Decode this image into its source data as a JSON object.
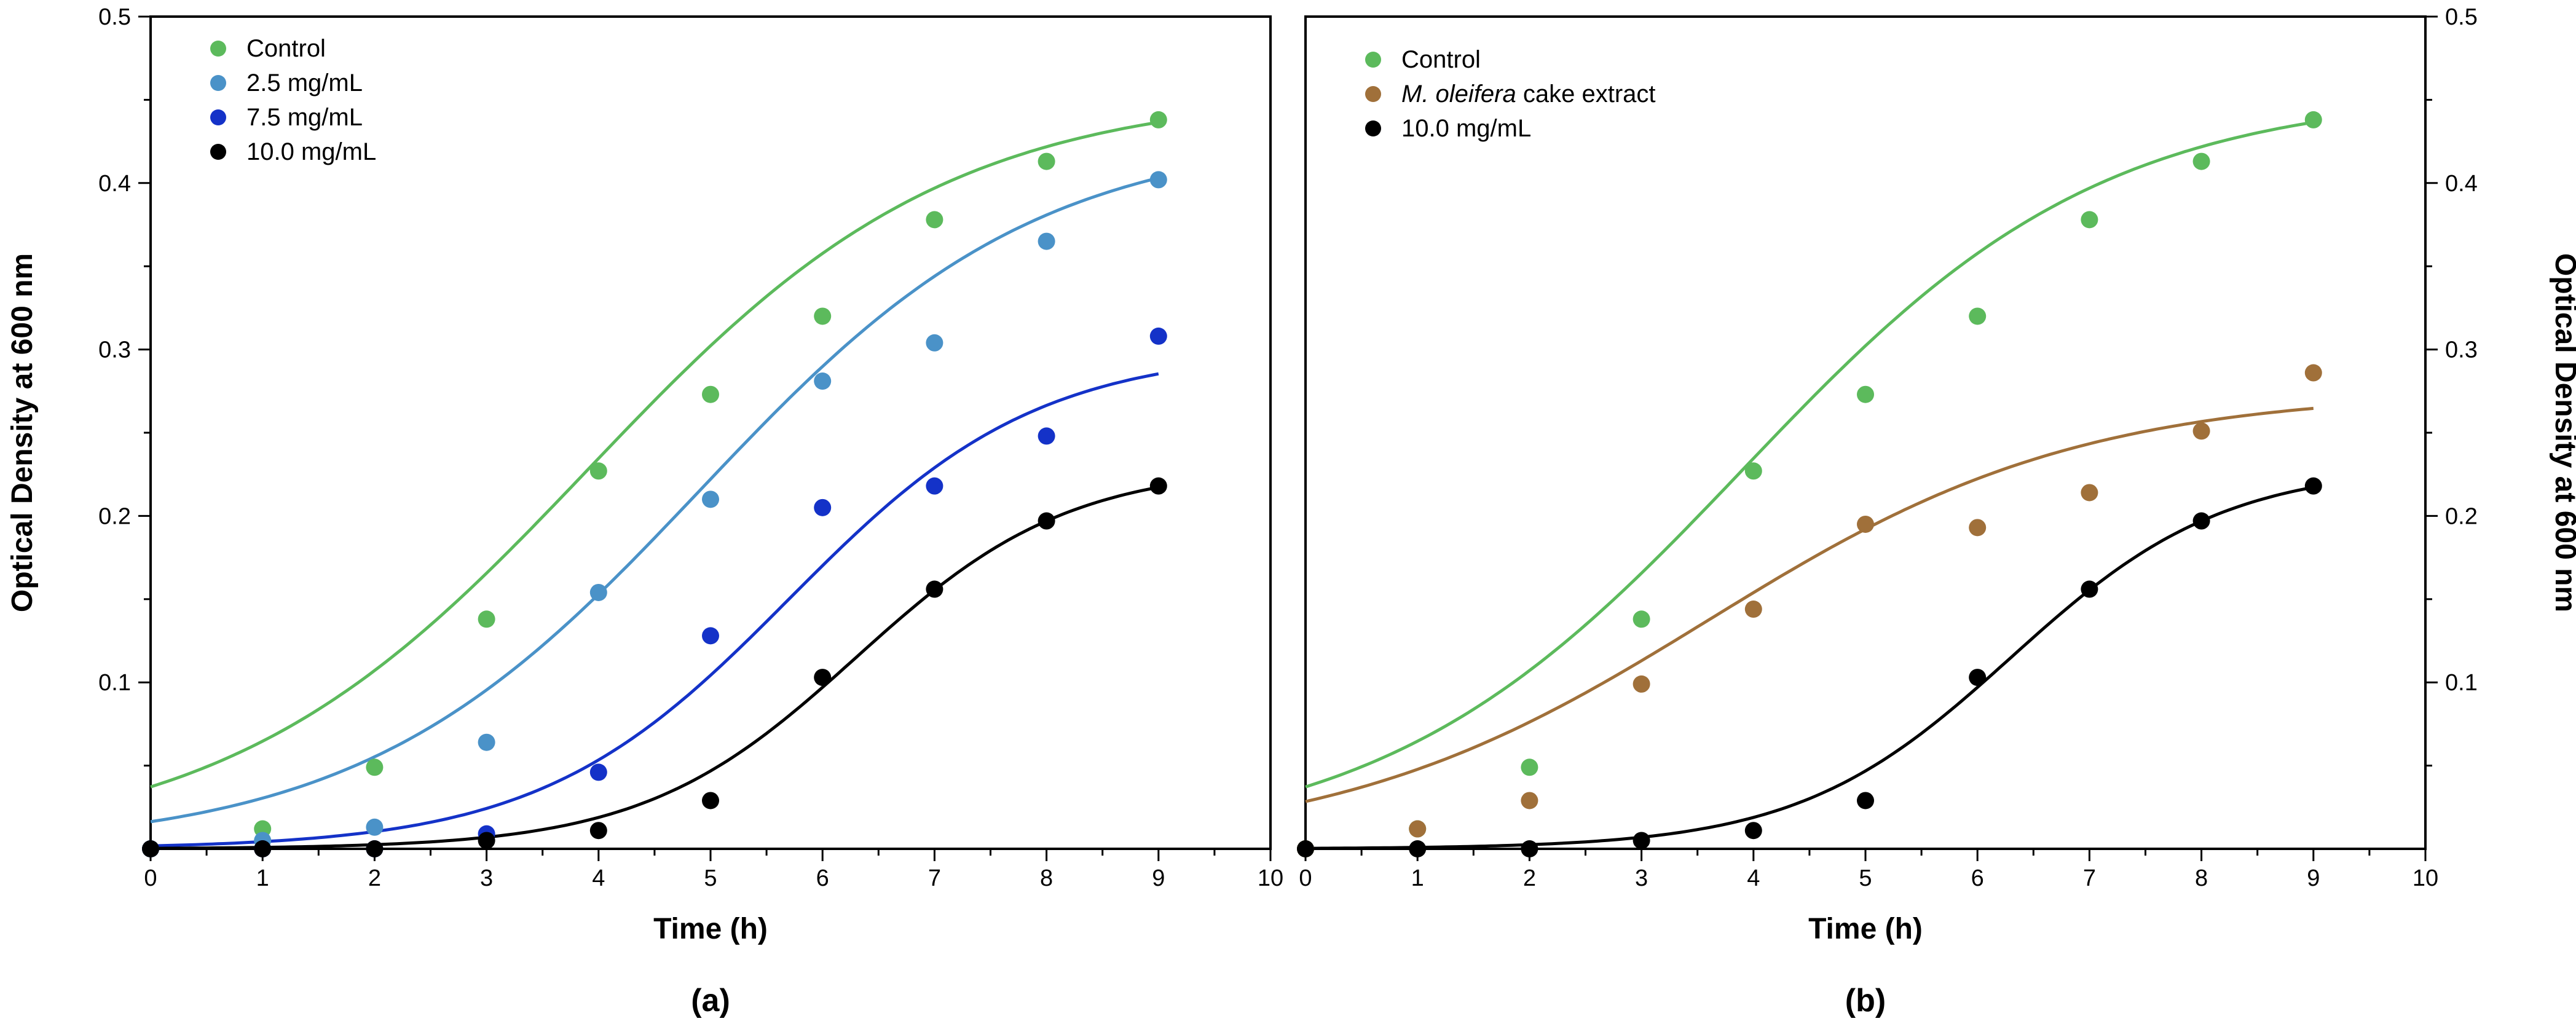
{
  "chart_data": [
    {
      "type": "scatter",
      "panel_label": "(a)",
      "xlabel": "Time (h)",
      "ylabel": "Optical Density at 600 nm",
      "ylabel_side": "left",
      "xlim": [
        0,
        10
      ],
      "ylim": [
        0,
        0.5
      ],
      "x_ticks": [
        "0",
        "1",
        "2",
        "3",
        "4",
        "5",
        "6",
        "7",
        "8",
        "9",
        "10"
      ],
      "y_ticks": [
        "0.1",
        "0.2",
        "0.3",
        "0.4",
        "0.5"
      ],
      "grid": false,
      "legend_position": "top-left",
      "x": [
        0,
        1,
        2,
        3,
        4,
        5,
        6,
        7,
        8,
        9
      ],
      "series": [
        {
          "name": "Control",
          "color": "#5cba5c",
          "values": [
            0.0,
            0.012,
            0.049,
            0.138,
            0.227,
            0.273,
            0.32,
            0.378,
            0.413,
            0.438
          ],
          "fit": {
            "model": "logistic",
            "K": 0.455,
            "r": 0.62,
            "t0": 3.9
          }
        },
        {
          "name": "2.5 mg/mL",
          "color": "#4a92c8",
          "values": [
            0.0,
            0.005,
            0.013,
            0.064,
            0.154,
            0.21,
            0.281,
            0.304,
            0.365,
            0.402
          ],
          "fit": {
            "model": "logistic",
            "K": 0.43,
            "r": 0.66,
            "t0": 4.9
          }
        },
        {
          "name": "7.5 mg/mL",
          "color": "#1432c8",
          "values": [
            0.0,
            0.0,
            0.0,
            0.009,
            0.046,
            0.128,
            0.205,
            0.218,
            0.248,
            0.308
          ],
          "fit": {
            "model": "logistic",
            "K": 0.3,
            "r": 0.9,
            "t0": 5.7
          }
        },
        {
          "name": "10.0 mg/mL",
          "color": "#000000",
          "values": [
            0.0,
            0.0,
            0.0,
            0.005,
            0.011,
            0.029,
            0.103,
            0.156,
            0.197,
            0.218
          ],
          "fit": {
            "model": "logistic",
            "K": 0.23,
            "r": 1.05,
            "t0": 6.3
          }
        }
      ]
    },
    {
      "type": "scatter",
      "panel_label": "(b)",
      "xlabel": "Time (h)",
      "ylabel": "Optical Density at 600 nm",
      "ylabel_side": "right",
      "xlim": [
        0,
        10
      ],
      "ylim": [
        0,
        0.5
      ],
      "x_ticks": [
        "0",
        "1",
        "2",
        "3",
        "4",
        "5",
        "6",
        "7",
        "8",
        "9",
        "10"
      ],
      "y_ticks": [
        "0.1",
        "0.2",
        "0.3",
        "0.4",
        "0.5"
      ],
      "grid": false,
      "legend_position": "top-left",
      "x": [
        0,
        1,
        2,
        3,
        4,
        5,
        6,
        7,
        8,
        9
      ],
      "series": [
        {
          "name": "Control",
          "color": "#5cba5c",
          "values": [
            0.0,
            0.012,
            0.049,
            0.138,
            0.227,
            0.273,
            0.32,
            0.378,
            0.413,
            0.438
          ],
          "fit": {
            "model": "logistic",
            "K": 0.455,
            "r": 0.62,
            "t0": 3.9
          }
        },
        {
          "name": "M. oleifera cake extract",
          "name_italic": "M. oleifera",
          "name_rest": " cake extract",
          "color": "#a0703a",
          "values": [
            0.0,
            0.012,
            0.029,
            0.099,
            0.144,
            0.195,
            0.193,
            0.214,
            0.251,
            0.286
          ],
          "fit": {
            "model": "logistic",
            "K": 0.275,
            "r": 0.6,
            "t0": 3.6
          }
        },
        {
          "name": "10.0 mg/mL",
          "color": "#000000",
          "values": [
            0.0,
            0.0,
            0.0,
            0.005,
            0.011,
            0.029,
            0.103,
            0.156,
            0.197,
            0.218
          ],
          "fit": {
            "model": "logistic",
            "K": 0.23,
            "r": 1.05,
            "t0": 6.3
          }
        }
      ]
    }
  ]
}
